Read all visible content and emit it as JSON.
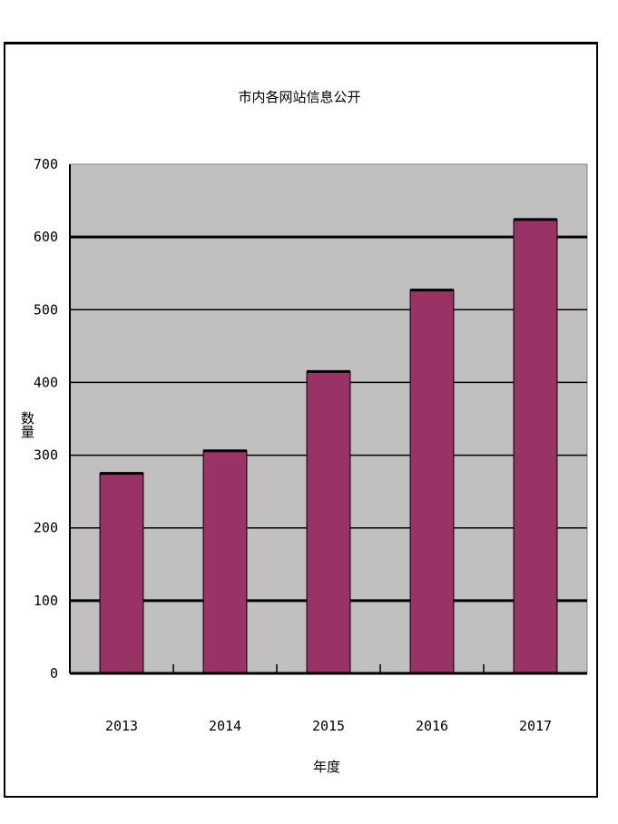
{
  "chart_data": {
    "type": "bar",
    "title": "市内各网站信息公开",
    "xlabel": "年度",
    "ylabel": "数量",
    "categories": [
      "2013",
      "2014",
      "2015",
      "2016",
      "2017"
    ],
    "values": [
      275,
      306,
      415,
      527,
      624
    ],
    "ylim": [
      0,
      700
    ],
    "yticks": [
      0,
      100,
      200,
      300,
      400,
      500,
      600,
      700
    ],
    "grid": true,
    "legend": "none",
    "colors": {
      "bar": "#993366",
      "plot_bg": "#c0c0c0",
      "grid": "#000000"
    }
  }
}
